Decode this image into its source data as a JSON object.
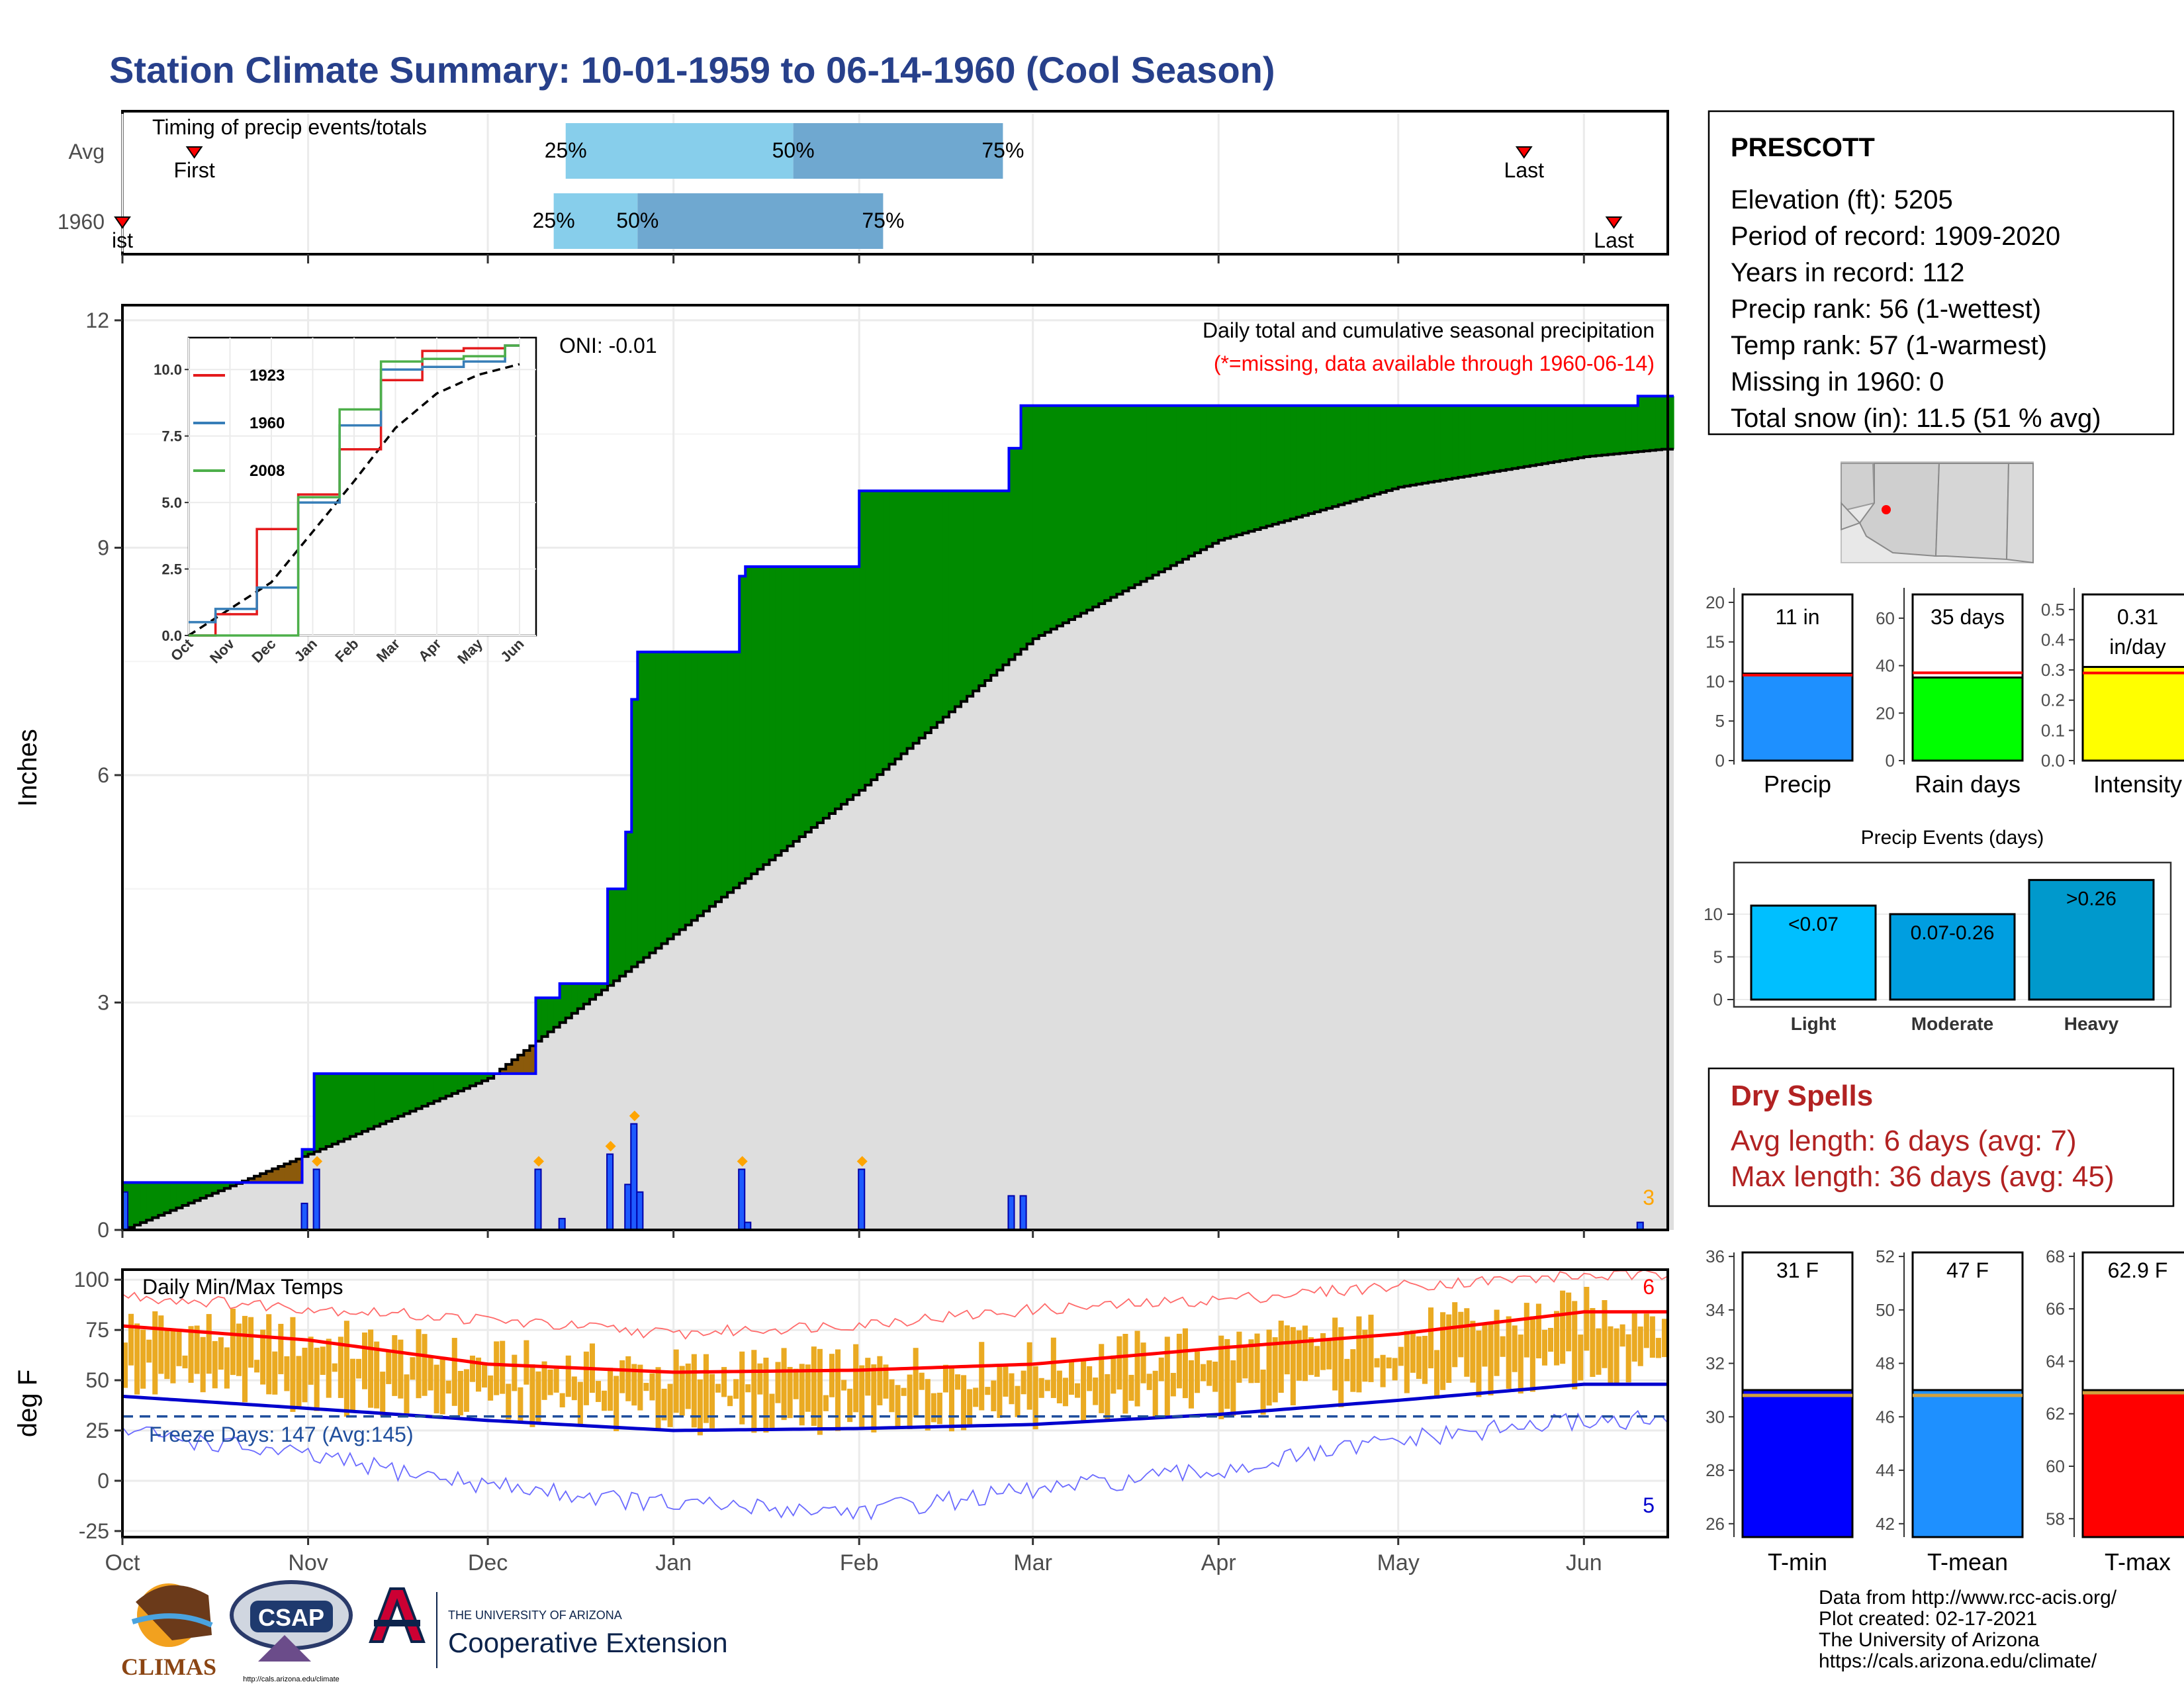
{
  "title": "Station Climate Summary: 10-01-1959 to 06-14-1960 (Cool Season)",
  "months": [
    "Oct",
    "Nov",
    "Dec",
    "Jan",
    "Feb",
    "Mar",
    "Apr",
    "May",
    "Jun"
  ],
  "timing": {
    "label": "Timing of precip events/totals",
    "rows": [
      {
        "name": "Avg",
        "first_label": "First",
        "last_label": "Last",
        "p25": "25%",
        "p50": "50%",
        "p75": "75%"
      },
      {
        "name": "1960",
        "first_label": "ist",
        "last_label": "Last",
        "p25": "25%",
        "p50": "50%",
        "p75": "75%"
      }
    ]
  },
  "precip": {
    "ylabel": "Inches",
    "yticks": [
      "0",
      "3",
      "6",
      "9",
      "12"
    ],
    "header": "Daily total and cumulative seasonal precipitation",
    "missing_note": "(*=missing, data available through 1960-06-14)",
    "oni": "ONI: -0.01",
    "count_label": "3",
    "inset": {
      "yticks": [
        "0.0",
        "2.5",
        "5.0",
        "7.5",
        "10.0"
      ],
      "legend": [
        {
          "name": "1923",
          "color": "#e41a1c"
        },
        {
          "name": "1960",
          "color": "#377eb8"
        },
        {
          "name": "2008",
          "color": "#4daf4a"
        }
      ]
    }
  },
  "temp": {
    "ylabel": "deg F",
    "title": "Daily Min/Max Temps",
    "yticks": [
      "-25",
      "0",
      "25",
      "50",
      "75",
      "100"
    ],
    "freeze": "Freeze Days: 147 (Avg:145)",
    "max_count": "6",
    "min_count": "5"
  },
  "station": {
    "name": "PRESCOTT",
    "lines": [
      "Elevation (ft): 5205",
      "Period of record: 1909-2020",
      "Years in record: 112",
      "Precip rank: 56 (1-wettest)",
      "Temp rank: 57 (1-warmest)",
      "Missing in 1960: 0",
      "Total snow (in): 11.5 (51 % avg)"
    ]
  },
  "minibars": [
    {
      "label": "Precip",
      "value_text": "11 in",
      "yticks": [
        "0",
        "5",
        "10",
        "15",
        "20"
      ],
      "color": "#1e90ff"
    },
    {
      "label": "Rain days",
      "value_text": "35 days",
      "yticks": [
        "0",
        "20",
        "40",
        "60"
      ],
      "color": "#00ff00"
    },
    {
      "label": "Intensity",
      "value_text": "0.31",
      "value_text2": "in/day",
      "yticks": [
        "0.0",
        "0.1",
        "0.2",
        "0.3",
        "0.4",
        "0.5"
      ],
      "color": "#ffff00"
    }
  ],
  "events": {
    "title": "Precip Events (days)",
    "yticks": [
      "0",
      "5",
      "10"
    ],
    "bars": [
      {
        "cat": "Light",
        "text": "<0.07",
        "color": "#00bfff"
      },
      {
        "cat": "Moderate",
        "text": "0.07-0.26",
        "color": "#009ee0"
      },
      {
        "cat": "Heavy",
        "text": ">0.26",
        "color": "#0099cc"
      }
    ]
  },
  "dryspells": {
    "title": "Dry Spells",
    "avg": "Avg length: 6 days (avg: 7)",
    "max": "Max length: 36 days (avg: 45)"
  },
  "tempbars": [
    {
      "label": "T-min",
      "value_text": "31 F",
      "yticks": [
        "26",
        "28",
        "30",
        "32",
        "34",
        "36"
      ],
      "color": "#0000ff"
    },
    {
      "label": "T-mean",
      "value_text": "47 F",
      "yticks": [
        "42",
        "44",
        "46",
        "48",
        "50",
        "52"
      ],
      "color": "#1e90ff"
    },
    {
      "label": "T-max",
      "value_text": "62.9 F",
      "yticks": [
        "58",
        "60",
        "62",
        "64",
        "66",
        "68"
      ],
      "color": "#ff0000"
    }
  ],
  "logos": {
    "climas": "CLIMAS",
    "csap": "CSAP",
    "csap_url": "http://cals.arizona.edu/climate",
    "ua_small": "THE UNIVERSITY OF ARIZONA",
    "ua_big": "Cooperative Extension"
  },
  "footer": [
    "Data from http://www.rcc-acis.org/",
    "Plot created: 02-17-2021",
    "The University of Arizona",
    "https://cals.arizona.edu/climate/"
  ],
  "chart_data": [
    {
      "type": "bar",
      "title": "Timing of precip events/totals",
      "categories": [
        "Avg",
        "1960"
      ],
      "series": [
        {
          "name": "First",
          "values": [
            "Oct 13",
            "Sep 30"
          ]
        },
        {
          "name": "25%",
          "values": [
            "Dec 14",
            "Dec 12"
          ]
        },
        {
          "name": "50%",
          "values": [
            "Jan 21",
            "Dec 26"
          ]
        },
        {
          "name": "75%",
          "values": [
            "Feb 25",
            "Feb 5"
          ]
        },
        {
          "name": "Last",
          "values": [
            "May 22",
            "Jun 6"
          ]
        }
      ]
    },
    {
      "type": "area",
      "title": "Daily total and cumulative seasonal precipitation",
      "ylabel": "Inches",
      "ylim": [
        0,
        12
      ],
      "x": [
        "1959-10-01",
        "1959-11-01",
        "1959-12-01",
        "1960-01-01",
        "1960-02-01",
        "1960-03-01",
        "1960-04-01",
        "1960-05-01",
        "1960-06-01",
        "1960-06-14"
      ],
      "series": [
        {
          "name": "1960",
          "values": [
            0.5,
            1.0,
            1.8,
            5.0,
            7.9,
            10.0,
            10.1,
            10.3,
            10.9,
            11.0
          ]
        },
        {
          "name": "Avg",
          "values": [
            0.0,
            1.0,
            2.0,
            3.9,
            5.8,
            7.8,
            9.1,
            9.8,
            10.2,
            10.3
          ]
        }
      ],
      "daily": {
        "dates": [
          "1959-10-01",
          "1959-10-31",
          "1959-11-02",
          "1959-12-09",
          "1959-12-13",
          "1959-12-21",
          "1959-12-24",
          "1959-12-25",
          "1959-12-26",
          "1960-01-12",
          "1960-01-13",
          "1960-02-01",
          "1960-02-26",
          "1960-02-28",
          "1960-06-10"
        ],
        "values": [
          0.5,
          0.35,
          0.8,
          0.8,
          0.15,
          1.0,
          0.6,
          1.4,
          0.5,
          0.8,
          0.1,
          0.8,
          0.45,
          0.45,
          0.1
        ]
      }
    },
    {
      "type": "line",
      "title": "",
      "x": [
        "Oct",
        "Nov",
        "Dec",
        "Jan",
        "Feb",
        "Mar",
        "Apr",
        "May",
        "Jun"
      ],
      "ylim": [
        0,
        11
      ],
      "series": [
        {
          "name": "1923",
          "values": [
            0.0,
            0.8,
            4.0,
            5.3,
            7.0,
            9.6,
            10.7,
            10.8,
            10.9
          ]
        },
        {
          "name": "1960",
          "values": [
            0.5,
            1.0,
            1.8,
            5.0,
            7.9,
            10.0,
            10.1,
            10.3,
            10.9
          ]
        },
        {
          "name": "2008",
          "values": [
            0.0,
            0.0,
            0.0,
            5.2,
            8.5,
            10.3,
            10.4,
            10.5,
            10.9
          ]
        }
      ]
    },
    {
      "type": "bar",
      "title": "Daily Min/Max Temps",
      "ylabel": "deg F",
      "ylim": [
        -25,
        100
      ],
      "x": [
        "Oct",
        "Nov",
        "Dec",
        "Jan",
        "Feb",
        "Mar",
        "Apr",
        "May",
        "Jun"
      ],
      "series": [
        {
          "name": "avg max",
          "values": [
            77,
            70,
            58,
            54,
            55,
            58,
            66,
            73,
            84
          ]
        },
        {
          "name": "avg min",
          "values": [
            42,
            36,
            30,
            25,
            26,
            28,
            33,
            40,
            48
          ]
        },
        {
          "name": "record max",
          "values": [
            92,
            86,
            80,
            73,
            78,
            85,
            90,
            97,
            102
          ]
        },
        {
          "name": "record min",
          "values": [
            25,
            12,
            -2,
            -12,
            -15,
            -5,
            5,
            20,
            30
          ]
        }
      ],
      "freeze_threshold": 32
    },
    {
      "type": "bar",
      "title": "",
      "categories": [
        "Precip",
        "Rain days",
        "Intensity"
      ],
      "values": [
        11,
        35,
        0.31
      ],
      "averages": [
        10.8,
        37,
        0.29
      ]
    },
    {
      "type": "bar",
      "title": "Precip Events (days)",
      "categories": [
        "Light",
        "Moderate",
        "Heavy"
      ],
      "values": [
        11,
        10,
        14
      ],
      "ylim": [
        0,
        15
      ]
    },
    {
      "type": "bar",
      "title": "",
      "categories": [
        "T-min",
        "T-mean",
        "T-max"
      ],
      "values": [
        31,
        47,
        62.9
      ],
      "averages": [
        30.8,
        46.8,
        62.8
      ]
    }
  ]
}
